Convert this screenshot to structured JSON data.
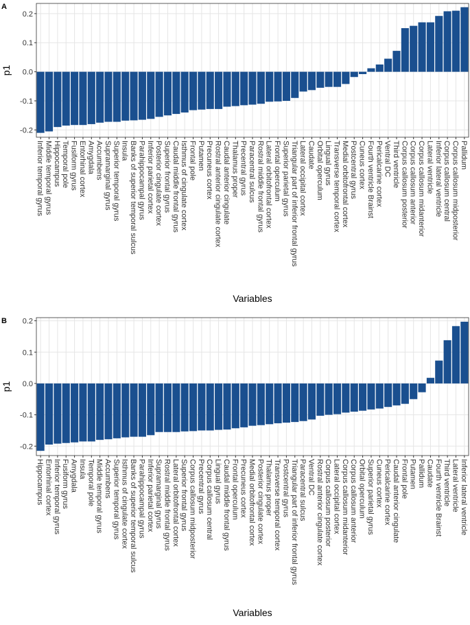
{
  "chart_data": [
    {
      "type": "bar",
      "panel": "A",
      "y_label": "p1",
      "x_label": "Variables",
      "color": "#1a4f8f",
      "grid": true,
      "categories": [
        "Inferior temporal gyrus",
        "Middle temporal gyrus",
        "Hippocampus",
        "Temporal pole",
        "Fusiform gyrus",
        "Entorhinal cortex",
        "Amygdala",
        "Accumbens",
        "Supramarginal gyrus",
        "Superior temporal gyrus",
        "Insula",
        "Banks of superior temporal sulcus",
        "Parahippocampal gyrus",
        "Inferior parietal cortex",
        "Posterior cingulate cortex",
        "Superior frontal gyrus",
        "Caudal middle frontal gyrus",
        "Isthmus of cingulate cortex",
        "Frontal pole",
        "Putamen",
        "Precuneus cortex",
        "Rostral anterior cingulate cortex",
        "Caudal anterior cingulate",
        "Thalamus proper",
        "Precentral gyrus",
        "Paracentral sulcus",
        "Rostral middle frontal gyrus",
        "Lateral orbitofrontal cortex",
        "Frontal operculum",
        "Superior parietal gyrus",
        "Triangular part of inferior frontal gyrus",
        "Lateral occipital cortex",
        "Caudate",
        "Orbital operculum",
        "Lingual gyrus",
        "Transverse temporal cortex",
        "Medial orbitofrontal cortex",
        "Postcentral gyrus",
        "Cuneus cortex",
        "Fourth ventricle Brainst",
        "Pericalcarine cortex",
        "Ventral DC",
        "Third ventricle",
        "Corpus callosum posterior",
        "Corpus callosum anterior",
        "Corpus callosum midanterior",
        "Lateral ventricle",
        "Inferior lateral ventricle",
        "Corpus callosum central",
        "Corpus callosum midposterior",
        "Pallidum"
      ],
      "values": [
        -0.21,
        -0.205,
        -0.19,
        -0.185,
        -0.183,
        -0.183,
        -0.18,
        -0.175,
        -0.172,
        -0.172,
        -0.168,
        -0.167,
        -0.165,
        -0.162,
        -0.155,
        -0.15,
        -0.145,
        -0.14,
        -0.132,
        -0.13,
        -0.128,
        -0.128,
        -0.12,
        -0.118,
        -0.115,
        -0.113,
        -0.11,
        -0.103,
        -0.102,
        -0.1,
        -0.09,
        -0.068,
        -0.063,
        -0.055,
        -0.052,
        -0.052,
        -0.042,
        -0.018,
        -0.008,
        0.012,
        0.025,
        0.045,
        0.072,
        0.15,
        0.158,
        0.17,
        0.17,
        0.192,
        0.208,
        0.21,
        0.222
      ],
      "ylim": [
        -0.225,
        0.235
      ],
      "yticks": [
        -0.2,
        -0.1,
        {
          "value": 0,
          "label": "0.0"
        },
        0.1,
        0.2
      ]
    },
    {
      "type": "bar",
      "panel": "B",
      "y_label": "p1",
      "x_label": "Variables",
      "color": "#1a4f8f",
      "grid": true,
      "categories": [
        "Hippocampus",
        "Entorhinal cortex",
        "Inferior temporal gyrus",
        "Fusiform gyrus",
        "Amygdala",
        "Insula",
        "Temporal pole",
        "Middle temporal gyrus",
        "Accumbens",
        "Superior temporal gyrus",
        "Isthmus of cingulate cortex",
        "Banks of superior temporal sulcus",
        "Parahippocampal gyrus",
        "Inferior parietal cortex",
        "Supramarginal gyrus",
        "Rostral middle frontal gyrus",
        "Lateral orbitofrontal cortex",
        "Superior frontal gyrus",
        "Corpus callosum midposterior",
        "Precentral gyrus",
        "Corpus callosum central",
        "Lingual gyrus",
        "Caudal middle frontal gyrus",
        "Frontal operculum",
        "Precuneus cortex",
        "Medial orbitofrontal cortex",
        "Posterior cingulate cortex",
        "Thalamus proper",
        "Transverse temporal cortex",
        "Postcentral gyrus",
        "Triangular part of inferior frontal gyrus",
        "Paracentral sulcus",
        "Ventral DC",
        "Rostral anterior cingulate cortex",
        "Corpus callosum posterior",
        "Lateral occipital cortex",
        "Corpus callosum midanterior",
        "Corpus callosum anterior",
        "Orbital operculum",
        "Superior parietal gyrus",
        "Cuneus cortex",
        "Pericalcarine cortex",
        "Caudal anterior cingulate",
        "Frontal pole",
        "Putamen",
        "Pallidum",
        "Caudate",
        "Fourth ventricle Brainst",
        "Third ventricle",
        "Lateral ventricle",
        "Inferior lateral ventricle"
      ],
      "values": [
        -0.215,
        -0.195,
        -0.192,
        -0.19,
        -0.188,
        -0.185,
        -0.185,
        -0.18,
        -0.178,
        -0.175,
        -0.172,
        -0.17,
        -0.17,
        -0.165,
        -0.155,
        -0.155,
        -0.155,
        -0.153,
        -0.152,
        -0.15,
        -0.15,
        -0.148,
        -0.147,
        -0.143,
        -0.14,
        -0.135,
        -0.133,
        -0.13,
        -0.127,
        -0.125,
        -0.123,
        -0.12,
        -0.115,
        -0.103,
        -0.1,
        -0.098,
        -0.093,
        -0.09,
        -0.087,
        -0.083,
        -0.08,
        -0.075,
        -0.07,
        -0.065,
        -0.05,
        -0.028,
        0.018,
        0.073,
        0.138,
        0.183,
        0.197
      ],
      "ylim": [
        -0.23,
        0.21
      ],
      "yticks": [
        -0.2,
        -0.1,
        {
          "value": 0,
          "label": "0.0"
        },
        0.1,
        0.2
      ]
    }
  ]
}
